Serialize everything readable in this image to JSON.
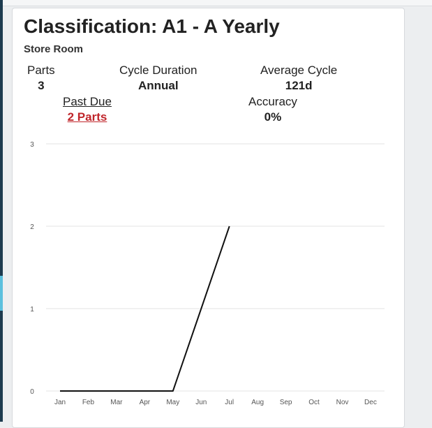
{
  "card": {
    "title": "Classification: A1 - A Yearly",
    "subtitle": "Store Room",
    "stats": {
      "parts": {
        "label": "Parts",
        "value": "3"
      },
      "cycle_duration": {
        "label": "Cycle Duration",
        "value": "Annual"
      },
      "average_cycle": {
        "label": "Average Cycle",
        "value": "121d"
      },
      "past_due": {
        "label": "Past Due",
        "value": "2 Parts"
      },
      "accuracy": {
        "label": "Accuracy",
        "value": "0%"
      }
    }
  },
  "colors": {
    "line": "#111111",
    "grid": "#e3e3e3",
    "danger": "#c0262b"
  },
  "chart_data": {
    "type": "line",
    "categories": [
      "Jan",
      "Feb",
      "Mar",
      "Apr",
      "May",
      "Jun",
      "Jul",
      "Aug",
      "Sep",
      "Oct",
      "Nov",
      "Dec"
    ],
    "series": [
      {
        "values": [
          0,
          0,
          0,
          0,
          0,
          1,
          2,
          null,
          null,
          null,
          null,
          null
        ]
      }
    ],
    "yticks": [
      "0",
      "1",
      "2",
      "3"
    ],
    "ylim": [
      0,
      3
    ],
    "grid": true,
    "legend": "none",
    "title": "",
    "xlabel": "",
    "ylabel": ""
  }
}
